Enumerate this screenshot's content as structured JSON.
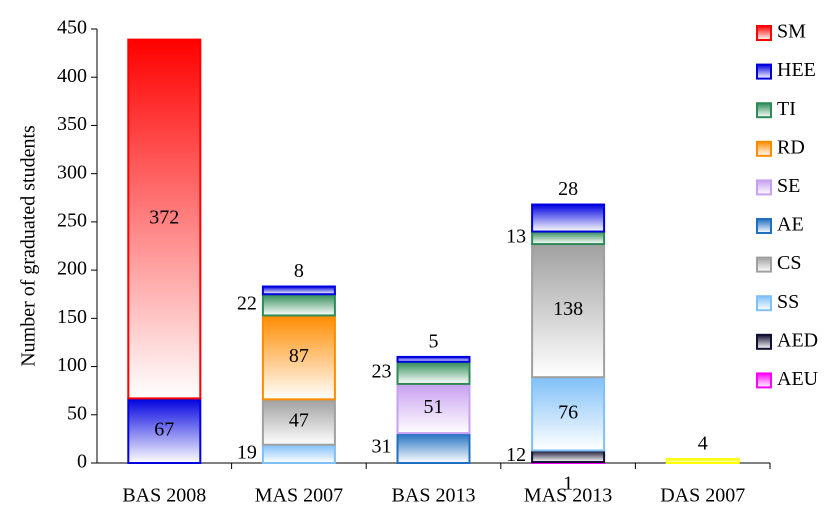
{
  "chart_data": {
    "type": "stacked_bar",
    "y_label": "Number of graduated students",
    "categories": [
      "BAS 2008",
      "MAS 2007",
      "BAS 2013",
      "MAS 2013",
      "DAS 2007"
    ],
    "ylim": [
      0,
      450
    ],
    "yticks": [
      0,
      50,
      100,
      150,
      200,
      250,
      300,
      350,
      400,
      450
    ],
    "series": [
      {
        "color": "#ffff00",
        "values": [
          null,
          null,
          null,
          null,
          4
        ]
      },
      {
        "name": "AEU",
        "color": "#ff00ff",
        "values": [
          null,
          null,
          null,
          1,
          null
        ]
      },
      {
        "name": "AED",
        "color": "#101030",
        "values": [
          null,
          null,
          null,
          12,
          null
        ]
      },
      {
        "name": "SS",
        "color": "#80c0f8",
        "values": [
          null,
          19,
          null,
          76,
          null
        ]
      },
      {
        "name": "CS",
        "color": "#a0a0a0",
        "values": [
          null,
          47,
          null,
          138,
          null
        ]
      },
      {
        "name": "AE",
        "color": "#1f6fc0",
        "values": [
          null,
          null,
          31,
          null,
          null
        ]
      },
      {
        "name": "SE",
        "color": "#c8a0f0",
        "values": [
          null,
          null,
          51,
          null,
          null
        ]
      },
      {
        "name": "RD",
        "color": "#ff8c00",
        "values": [
          null,
          87,
          null,
          null,
          null
        ]
      },
      {
        "name": "TI",
        "color": "#2e8b57",
        "values": [
          null,
          22,
          23,
          13,
          null
        ]
      },
      {
        "name": "HEE",
        "color": "#0000e0",
        "values": [
          67,
          8,
          5,
          28,
          null
        ]
      },
      {
        "name": "SM",
        "color": "#ff0000",
        "values": [
          372,
          null,
          null,
          null,
          null
        ]
      }
    ]
  }
}
